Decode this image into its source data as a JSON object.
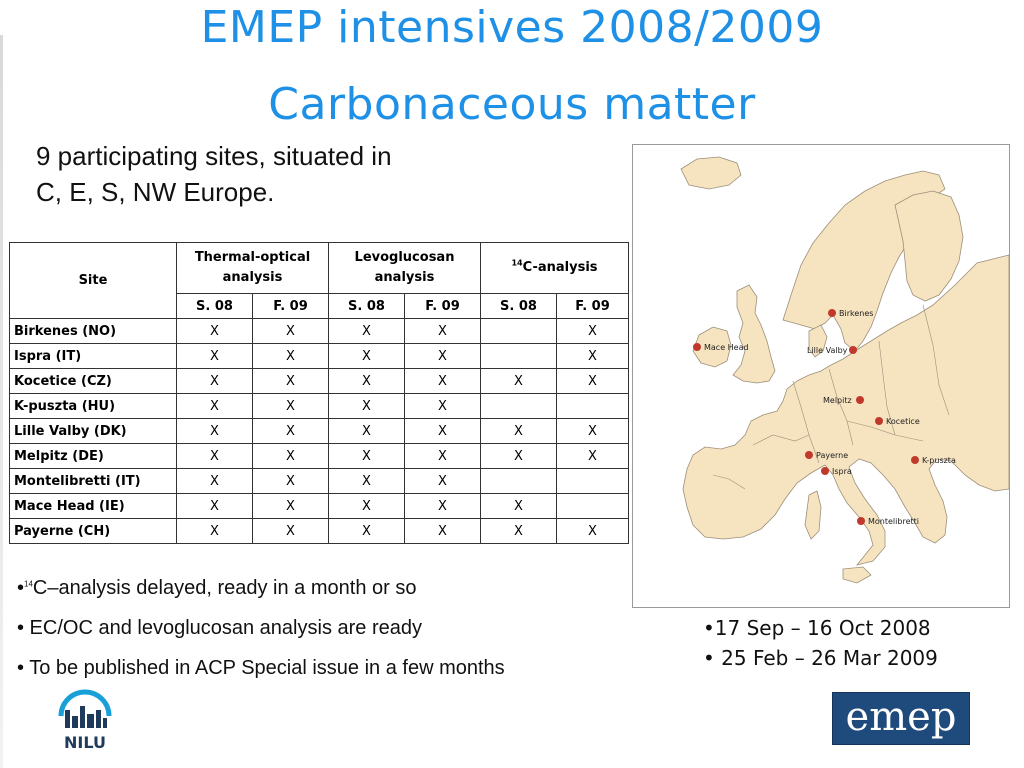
{
  "title": {
    "line1": "EMEP intensives 2008/2009",
    "line2": "Carbonaceous matter"
  },
  "intro": {
    "line1": "9 participating sites, situated in",
    "line2": "C, E, S, NW Europe."
  },
  "table": {
    "header": {
      "site": "Site",
      "thermal": "Thermal-optical analysis",
      "levo": "Levoglucosan analysis",
      "c14_sup": "14",
      "c14": "C-analysis",
      "periods": [
        "S. 08",
        "F. 09",
        "S. 08",
        "F. 09",
        "S. 08",
        "F. 09"
      ]
    },
    "rows": [
      {
        "site": "Birkenes (NO)",
        "cells": [
          "X",
          "X",
          "X",
          "X",
          "",
          "X"
        ]
      },
      {
        "site": "Ispra (IT)",
        "cells": [
          "X",
          "X",
          "X",
          "X",
          "",
          "X"
        ]
      },
      {
        "site": "Kocetice (CZ)",
        "cells": [
          "X",
          "X",
          "X",
          "X",
          "X",
          "X"
        ]
      },
      {
        "site": "K-puszta (HU)",
        "cells": [
          "X",
          "X",
          "X",
          "X",
          "",
          ""
        ]
      },
      {
        "site": "Lille Valby (DK)",
        "cells": [
          "X",
          "X",
          "X",
          "X",
          "X",
          "X"
        ]
      },
      {
        "site": "Melpitz (DE)",
        "cells": [
          "X",
          "X",
          "X",
          "X",
          "X",
          "X"
        ]
      },
      {
        "site": "Montelibretti (IT)",
        "cells": [
          "X",
          "X",
          "X",
          "X",
          "",
          ""
        ]
      },
      {
        "site": "Mace Head (IE)",
        "cells": [
          "X",
          "X",
          "X",
          "X",
          "X",
          ""
        ]
      },
      {
        "site": "Payerne (CH)",
        "cells": [
          "X",
          "X",
          "X",
          "X",
          "X",
          "X"
        ]
      }
    ]
  },
  "bullets": {
    "b1_prefix": "•",
    "b1_sup": "14",
    "b1_text": "C–analysis delayed, ready in a month or so",
    "b2": "• EC/OC and levoglucosan analysis are ready",
    "b3": "• To be published in ACP Special issue in a few months"
  },
  "dates": {
    "d1": "•17 Sep – 16 Oct 2008",
    "d2": "• 25 Feb – 26 Mar 2009"
  },
  "map": {
    "land_color": "#f6e3bf",
    "sea_color": "#ffffff",
    "border_color": "#9c8f7a",
    "marker_color": "#c0392b",
    "labels": {
      "birkenes": "Birkenes",
      "mace_head": "Mace Head",
      "lille_valby": "Lille Valby",
      "melpitz": "Melpitz",
      "kocetice": "Kocetice",
      "payerne": "Payerne",
      "ispra": "Ispra",
      "kpuszta": "K-puszta",
      "montelibretti": "Montelibretti"
    }
  },
  "logos": {
    "nilu": "NILU",
    "emep": "emep"
  }
}
